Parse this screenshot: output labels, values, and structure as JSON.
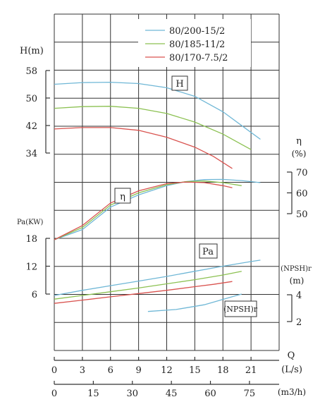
{
  "chart_data": {
    "type": "line",
    "title": "",
    "legend": {
      "placement": "top-right",
      "entries": [
        {
          "name": "80/200-15/2",
          "color": "#6fb7d6"
        },
        {
          "name": "80/185-11/2",
          "color": "#8cc152"
        },
        {
          "name": "80/170-7.5/2",
          "color": "#d9534f"
        }
      ]
    },
    "x_axis": {
      "label": "Q",
      "unit": "(L/s)",
      "ticks": [
        0,
        3,
        6,
        9,
        12,
        15,
        18,
        21
      ],
      "range": [
        0,
        24
      ]
    },
    "x2_axis": {
      "unit": "(m3/h)",
      "ticks": [
        0,
        15,
        30,
        45,
        60,
        75
      ],
      "range": [
        0,
        86.4
      ]
    },
    "head_axis": {
      "label": "H(m)",
      "ticks": [
        34,
        42,
        50,
        58
      ],
      "range": [
        34,
        58
      ]
    },
    "eff_axis": {
      "label": "η",
      "unit": "(%)",
      "ticks": [
        50,
        60,
        70
      ],
      "range": [
        50,
        70
      ]
    },
    "power_axis": {
      "label": "Pa(KW)",
      "ticks": [
        6,
        12,
        18
      ],
      "range": [
        6,
        18
      ]
    },
    "npsh_axis": {
      "label": "(NPSH)r",
      "unit": "(m)",
      "ticks": [
        2,
        4
      ],
      "range": [
        2,
        4
      ]
    },
    "curve_labels": [
      "H",
      "η",
      "Pa",
      "(NPSH)r"
    ],
    "series": [
      {
        "name": "80/200-15/2",
        "color": "#6fb7d6",
        "head": [
          [
            0,
            54
          ],
          [
            3,
            54.5
          ],
          [
            6,
            54.6
          ],
          [
            9,
            54.2
          ],
          [
            12,
            53
          ],
          [
            15,
            50.5
          ],
          [
            18,
            46
          ],
          [
            21,
            40
          ],
          [
            22,
            38
          ]
        ],
        "efficiency": [
          [
            0,
            38
          ],
          [
            3,
            43
          ],
          [
            6,
            54
          ],
          [
            9,
            60
          ],
          [
            12,
            64.5
          ],
          [
            14,
            66.5
          ],
          [
            16,
            67.5
          ],
          [
            18,
            67.6
          ],
          [
            20,
            67
          ],
          [
            22,
            66
          ]
        ],
        "power": [
          [
            0,
            5.7
          ],
          [
            3,
            6.8
          ],
          [
            6,
            7.8
          ],
          [
            9,
            8.8
          ],
          [
            12,
            9.8
          ],
          [
            15,
            10.9
          ],
          [
            18,
            12
          ],
          [
            21,
            13
          ],
          [
            22,
            13.3
          ]
        ],
        "npsh": [
          [
            10,
            2.7
          ],
          [
            13,
            2.85
          ],
          [
            16,
            3.2
          ],
          [
            19,
            3.8
          ],
          [
            20,
            4
          ]
        ]
      },
      {
        "name": "80/185-11/2",
        "color": "#8cc152",
        "head": [
          [
            0,
            47
          ],
          [
            3,
            47.5
          ],
          [
            6,
            47.6
          ],
          [
            9,
            47
          ],
          [
            12,
            45.5
          ],
          [
            15,
            43
          ],
          [
            18,
            39.5
          ],
          [
            20,
            36.5
          ],
          [
            21,
            35
          ]
        ],
        "efficiency": [
          [
            0,
            38
          ],
          [
            3,
            44
          ],
          [
            6,
            55
          ],
          [
            9,
            61
          ],
          [
            12,
            65
          ],
          [
            14,
            66.5
          ],
          [
            16,
            66.8
          ],
          [
            18,
            66
          ],
          [
            20,
            64.5
          ]
        ],
        "power": [
          [
            0,
            4.9
          ],
          [
            3,
            5.7
          ],
          [
            6,
            6.5
          ],
          [
            9,
            7.3
          ],
          [
            12,
            8.2
          ],
          [
            15,
            9.1
          ],
          [
            18,
            10.1
          ],
          [
            20,
            10.9
          ]
        ],
        "npsh": []
      },
      {
        "name": "80/170-7.5/2",
        "color": "#d9534f",
        "head": [
          [
            0,
            41
          ],
          [
            3,
            41.4
          ],
          [
            6,
            41.4
          ],
          [
            9,
            40.6
          ],
          [
            12,
            38.6
          ],
          [
            15,
            35.7
          ],
          [
            17,
            33
          ],
          [
            19,
            29.5
          ]
        ],
        "efficiency": [
          [
            0,
            38
          ],
          [
            3,
            45
          ],
          [
            6,
            56
          ],
          [
            9,
            62
          ],
          [
            12,
            65.5
          ],
          [
            14,
            66.3
          ],
          [
            16,
            66
          ],
          [
            18,
            64.5
          ],
          [
            19,
            63.5
          ]
        ],
        "power": [
          [
            0,
            4.0
          ],
          [
            3,
            4.7
          ],
          [
            6,
            5.4
          ],
          [
            9,
            6.1
          ],
          [
            12,
            6.8
          ],
          [
            15,
            7.6
          ],
          [
            17,
            8.1
          ],
          [
            19,
            8.7
          ]
        ],
        "npsh": []
      }
    ]
  }
}
